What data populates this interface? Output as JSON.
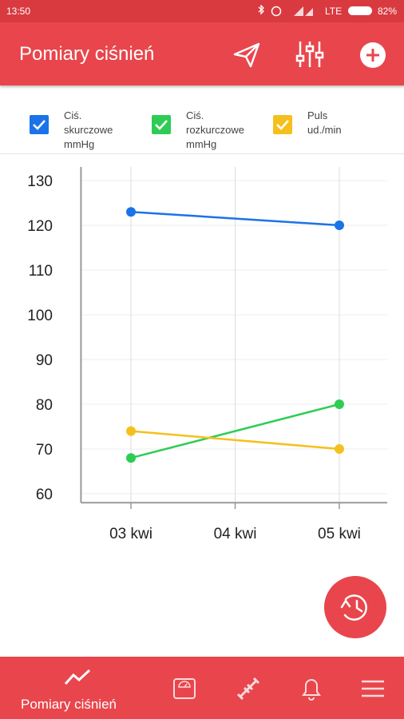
{
  "status_bar": {
    "time": "13:50",
    "network": "LTE",
    "battery": "82%"
  },
  "app_bar": {
    "title": "Pomiary ciśnień"
  },
  "chart_data": {
    "type": "line",
    "x": [
      3,
      5
    ],
    "xlim": [
      2.52,
      5.46
    ],
    "xticks": [
      {
        "value": 3,
        "label": "03 kwi"
      },
      {
        "value": 4,
        "label": "04 kwi"
      },
      {
        "value": 5,
        "label": "05 kwi"
      }
    ],
    "ylim": [
      58,
      132.5
    ],
    "yticks": [
      60,
      70,
      80,
      90,
      100,
      110,
      120,
      130
    ],
    "grid": true,
    "series": [
      {
        "name": "Ciś. skurczowe mmHg",
        "color": "#1a73e8",
        "values": [
          123,
          120
        ]
      },
      {
        "name": "Ciś. rozkurczowe mmHg",
        "color": "#2ecc55",
        "values": [
          68,
          80
        ]
      },
      {
        "name": "Puls ud./min",
        "color": "#f5c01e",
        "values": [
          74,
          70
        ]
      }
    ]
  },
  "bottom_nav": {
    "active_label": "Pomiary ciśnień"
  }
}
